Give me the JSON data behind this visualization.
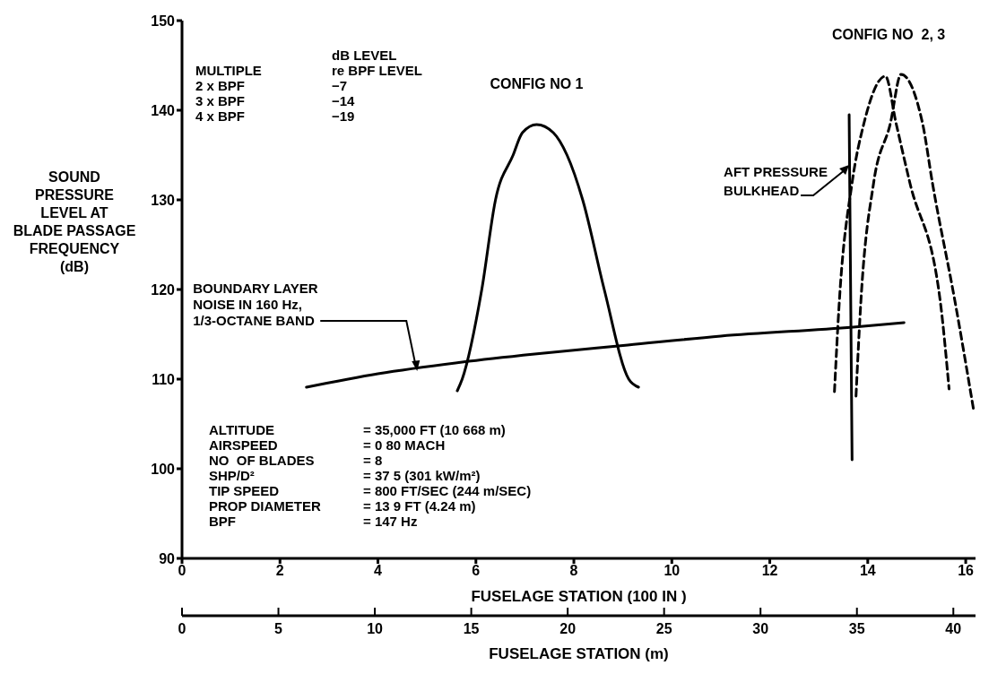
{
  "chart_data": {
    "type": "line",
    "ylabel": "SOUND PRESSURE\nLEVEL AT\nBLADE PASSAGE\nFREQUENCY\n(dB)",
    "xlabel": "FUSELAGE STATION (100 IN )",
    "x2label": "FUSELAGE STATION (m)",
    "xlim": [
      0,
      16.2
    ],
    "xticks": [
      0,
      2,
      4,
      6,
      8,
      10,
      12,
      14,
      16
    ],
    "x2lim": [
      0,
      41.15
    ],
    "x2ticks": [
      0,
      5,
      10,
      15,
      20,
      25,
      30,
      35,
      40
    ],
    "ylim": [
      90,
      150
    ],
    "yticks": [
      90,
      100,
      110,
      120,
      130,
      140,
      150
    ],
    "series": [
      {
        "color": "#000000",
        "line_style": "solid",
        "x": [
          5.62,
          5.72,
          6.12,
          6.4,
          6.76,
          6.95,
          7.24,
          7.58,
          7.86,
          8.18,
          8.62,
          9.12,
          9.32
        ],
        "values": [
          108.7,
          110,
          120,
          130,
          135,
          137.5,
          138.4,
          137.5,
          135,
          130,
          120,
          110,
          109.1
        ]
      },
      {
        "color": "#000000",
        "line_style": "solid",
        "x": [
          2.54,
          4,
          5.72,
          7.2,
          9.1,
          11,
          13.7,
          14.74
        ],
        "values": [
          109.1,
          110.6,
          111.9,
          112.8,
          113.8,
          114.8,
          115.8,
          116.3
        ]
      },
      {
        "color": "#000000",
        "line_style": "solid",
        "x": [
          13.62,
          13.68
        ],
        "values": [
          139.5,
          101
        ]
      },
      {
        "color": "#000000",
        "line_style": "dashed",
        "x": [
          13.32,
          13.42,
          13.68,
          13.92,
          14.36,
          14.58,
          14.86,
          15.48,
          15.66
        ],
        "values": [
          108.6,
          118.7,
          131.9,
          138.5,
          143.8,
          138.5,
          131.9,
          118.7,
          108.9
        ]
      },
      {
        "color": "#000000",
        "line_style": "dashed",
        "x": [
          13.76,
          13.86,
          14.12,
          14.46,
          14.68,
          15.12,
          15.32,
          15.78,
          16.16
        ],
        "values": [
          108.1,
          118.7,
          131.9,
          138.5,
          144,
          138.5,
          131.9,
          118.7,
          106.6
        ]
      }
    ],
    "annotations": [
      {
        "text": "CONFIG NO  1",
        "x": 7.24,
        "y": 138.4
      },
      {
        "text": "BOUNDARY LAYER\nNOISE IN 160 Hz,\n1/3-OCTANE BAND",
        "x": 4.8,
        "y": 110.9
      },
      {
        "text": "AFT PRESSURE\nBULKHEAD",
        "x": 13.62,
        "y": 133.9
      },
      "MULTIPLE",
      "dB LEVEL\nre BPF LEVEL",
      "2 x BPF",
      "−7",
      "3 x BPF",
      "−14",
      "4 x BPF",
      "−19",
      "ALTITUDE",
      "= 35,000 FT (10 668 m)",
      "AIRSPEED",
      "= 0 80 MACH",
      "NO  OF BLADES",
      "= 8",
      "SHP/D²",
      "= 37 5 (301 kW/m²)",
      "TIP SPEED",
      "= 800 FT/SEC (244 m/SEC)",
      "PROP DIAMETER",
      "= 13 9 FT (4.24 m)",
      "BPF",
      "= 147 Hz",
      "CONFIG NO  2, 3"
    ]
  }
}
